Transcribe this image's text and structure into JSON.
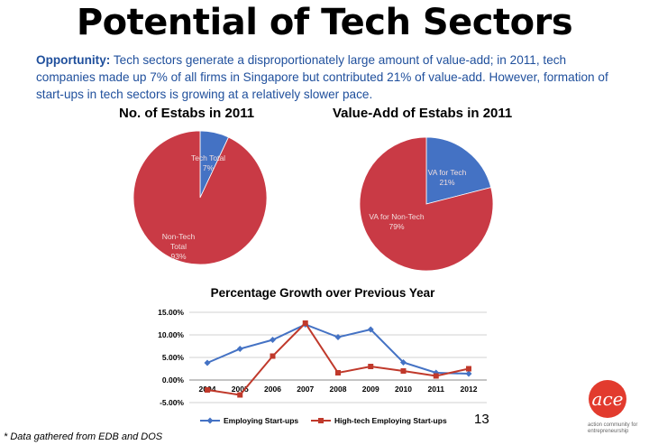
{
  "title": "Potential of Tech Sectors",
  "intro": {
    "label": "Opportunity:",
    "text": " Tech sectors generate a disproportionately large amount of value-add; in 2011, tech companies made up 7% of all firms in Singapore but contributed 21% of value-add. However, formation of start-ups in tech sectors is growing at a relatively slower pace."
  },
  "colors": {
    "blue": "#4472C4",
    "red": "#C0392B"
  },
  "chart_data": [
    {
      "type": "pie",
      "title": "No. of Estabs in 2011",
      "slices": [
        {
          "label": "Tech Total",
          "value_label": "7%",
          "value": 7,
          "color": "#4472C4"
        },
        {
          "label": "Non-Tech Total",
          "value_label": "93%",
          "value": 93,
          "color": "#C93A45"
        }
      ]
    },
    {
      "type": "pie",
      "title": "Value-Add of Estabs in 2011",
      "slices": [
        {
          "label": "VA for Tech",
          "value_label": "21%",
          "value": 21,
          "color": "#4472C4"
        },
        {
          "label": "VA for Non-Tech",
          "value_label": "79%",
          "value": 79,
          "color": "#C93A45"
        }
      ]
    },
    {
      "type": "line",
      "title": "Percentage Growth over Previous Year",
      "x": [
        "2004",
        "2005",
        "2006",
        "2007",
        "2008",
        "2009",
        "2010",
        "2011",
        "2012"
      ],
      "ylim": [
        -5,
        15
      ],
      "yticks": [
        "15.00%",
        "10.00%",
        "5.00%",
        "0.00%",
        "-5.00%"
      ],
      "ytick_values": [
        15,
        10,
        5,
        0,
        -5
      ],
      "grid": true,
      "legend": "bottom",
      "series": [
        {
          "name": "Employing Start-ups",
          "color": "#4472C4",
          "marker": "diamond",
          "values": [
            3.8,
            6.9,
            8.9,
            12.3,
            9.5,
            11.2,
            3.9,
            1.6,
            1.4
          ]
        },
        {
          "name": "High-tech Employing Start-ups",
          "color": "#C0392B",
          "marker": "square",
          "values": [
            -2.2,
            -3.3,
            5.3,
            12.6,
            1.6,
            3.0,
            2.0,
            0.9,
            2.5
          ]
        }
      ]
    }
  ],
  "footer": {
    "source": "* Data gathered from EDB and DOS",
    "page_number": "13",
    "logo_text": "ace",
    "logo_tagline": "action community for entrepreneurship"
  }
}
